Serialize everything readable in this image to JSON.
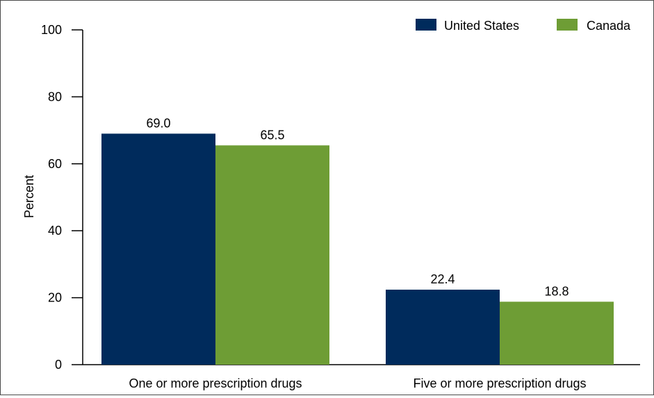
{
  "chart_data": {
    "type": "bar",
    "title": "",
    "xlabel": "",
    "ylabel": "Percent",
    "ylim": [
      0,
      100
    ],
    "yticks": [
      0,
      20,
      40,
      60,
      80,
      100
    ],
    "categories": [
      "One or more prescription drugs",
      "Five or more prescription drugs"
    ],
    "series": [
      {
        "name": "United States",
        "values": [
          69.0,
          22.4
        ],
        "labels": [
          "69.0",
          "22.4"
        ],
        "color": "#002b5c"
      },
      {
        "name": "Canada",
        "values": [
          65.5,
          18.8
        ],
        "labels": [
          "65.5",
          "18.8"
        ],
        "color": "#6e9d35"
      }
    ],
    "legend_position": "top-right",
    "grid": false
  }
}
